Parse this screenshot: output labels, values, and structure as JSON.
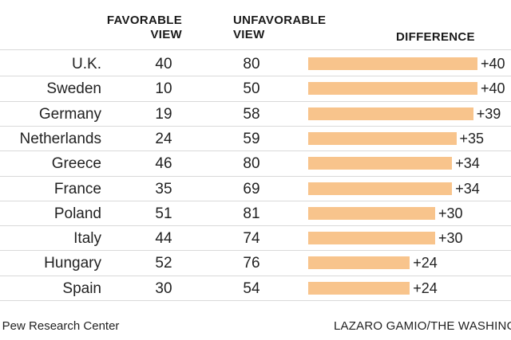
{
  "headers": {
    "favorable": [
      "FAVORABLE",
      "VIEW"
    ],
    "unfavorable": [
      "UNFAVORABLE",
      "VIEW"
    ],
    "difference": "DIFFERENCE"
  },
  "colors": {
    "bar": "#f8c48c",
    "rule": "#d9d9d9",
    "text": "#222222"
  },
  "chart_data": {
    "type": "table",
    "columns": [
      "",
      "FAVORABLE VIEW",
      "UNFAVORABLE VIEW",
      "DIFFERENCE"
    ],
    "diff_axis_max": 40,
    "rows": [
      {
        "country": "U.K.",
        "favorable": "40",
        "unfavorable": "80",
        "difference": 40,
        "difference_label": "+40"
      },
      {
        "country": "Sweden",
        "favorable": "10",
        "unfavorable": "50",
        "difference": 40,
        "difference_label": "+40"
      },
      {
        "country": "Germany",
        "favorable": "19",
        "unfavorable": "58",
        "difference": 39,
        "difference_label": "+39"
      },
      {
        "country": "Netherlands",
        "favorable": "24",
        "unfavorable": "59",
        "difference": 35,
        "difference_label": "+35"
      },
      {
        "country": "Greece",
        "favorable": "46",
        "unfavorable": "80",
        "difference": 34,
        "difference_label": "+34"
      },
      {
        "country": "France",
        "favorable": "35",
        "unfavorable": "69",
        "difference": 34,
        "difference_label": "+34"
      },
      {
        "country": "Poland",
        "favorable": "51",
        "unfavorable": "81",
        "difference": 30,
        "difference_label": "+30"
      },
      {
        "country": "Italy",
        "favorable": "44",
        "unfavorable": "74",
        "difference": 30,
        "difference_label": "+30"
      },
      {
        "country": "Hungary",
        "favorable": "52",
        "unfavorable": "76",
        "difference": 24,
        "difference_label": "+24"
      },
      {
        "country": "Spain",
        "favorable": "30",
        "unfavorable": "54",
        "difference": 24,
        "difference_label": "+24"
      }
    ]
  },
  "footer": {
    "source": "e: Pew Research Center",
    "credit": "LAZARO GAMIO/THE WASHINGTO"
  }
}
